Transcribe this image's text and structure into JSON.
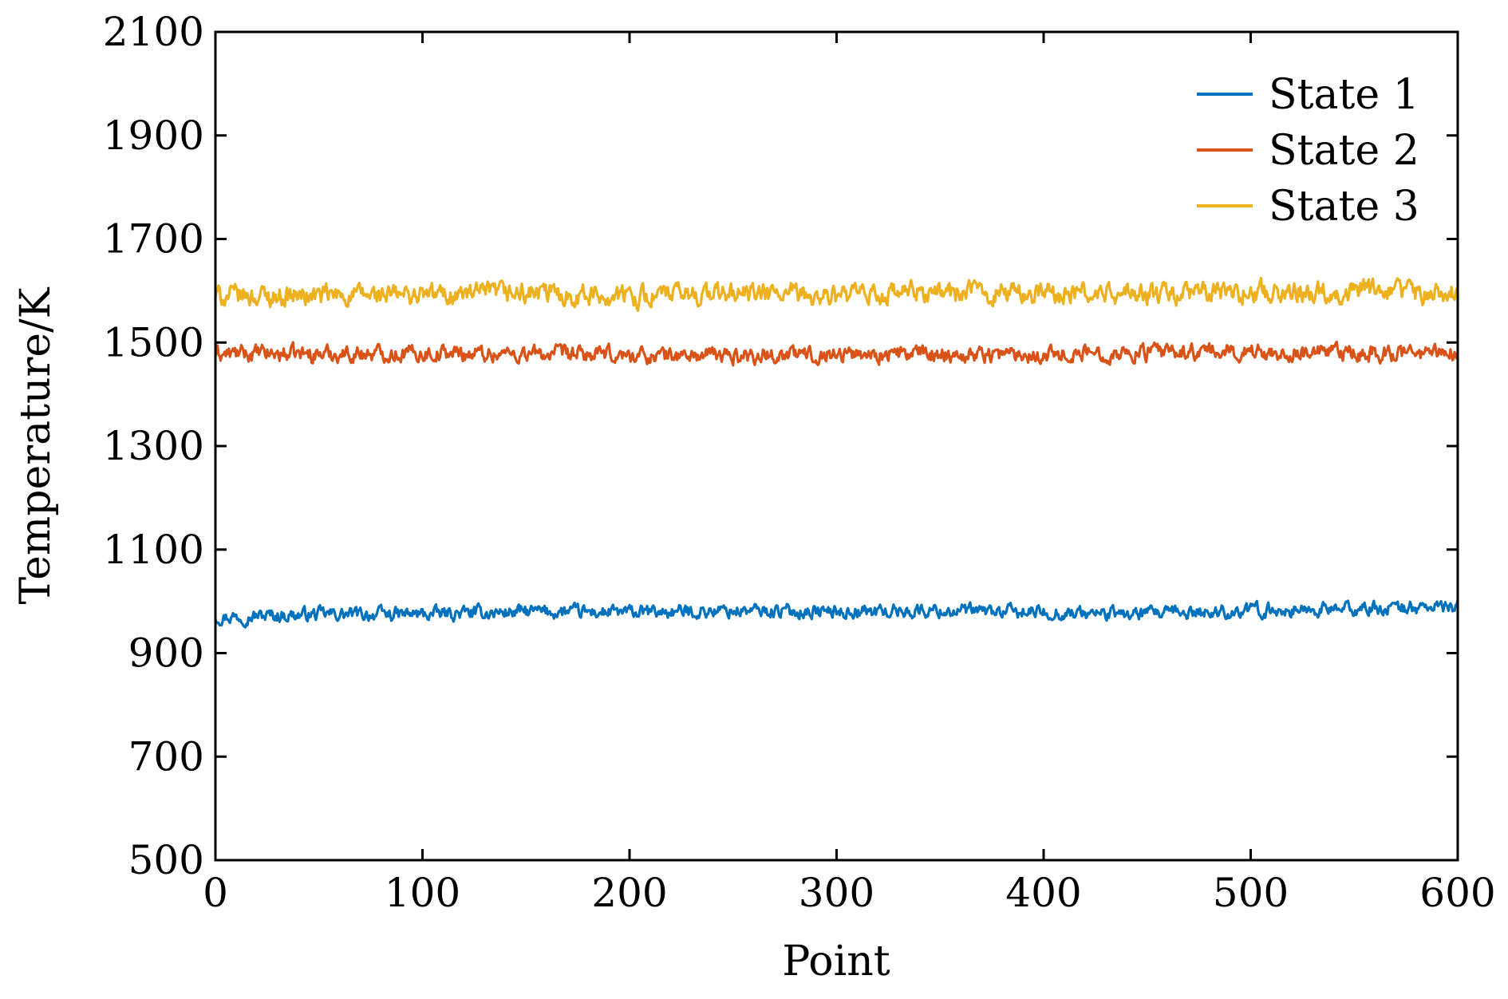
{
  "chart_data": {
    "type": "line",
    "xlabel": "Point",
    "ylabel": "Temperature/K",
    "xlim": [
      0,
      600
    ],
    "ylim": [
      500,
      2100
    ],
    "xticks": [
      "0",
      "100",
      "200",
      "300",
      "400",
      "500",
      "600"
    ],
    "yticks": [
      "500",
      "700",
      "900",
      "1100",
      "1300",
      "1500",
      "1700",
      "1900",
      "2100"
    ],
    "grid": false,
    "legend_position": "top-right",
    "series": [
      {
        "name": "State 1",
        "color": "#0072BD",
        "mean": 978,
        "noise_amplitude": 18,
        "x": [
          0,
          50,
          100,
          150,
          200,
          250,
          300,
          350,
          400,
          450,
          500,
          550,
          600
        ],
        "values": [
          970,
          975,
          975,
          980,
          978,
          982,
          980,
          982,
          978,
          975,
          982,
          985,
          990
        ]
      },
      {
        "name": "State 2",
        "color": "#D95319",
        "mean": 1478,
        "noise_amplitude": 22,
        "x": [
          0,
          50,
          100,
          150,
          200,
          250,
          300,
          350,
          400,
          450,
          500,
          550,
          600
        ],
        "values": [
          1478,
          1478,
          1480,
          1478,
          1475,
          1475,
          1478,
          1478,
          1478,
          1480,
          1482,
          1478,
          1480
        ]
      },
      {
        "name": "State 3",
        "color": "#EDB120",
        "mean": 1592,
        "noise_amplitude": 28,
        "x": [
          0,
          50,
          100,
          150,
          200,
          250,
          300,
          350,
          400,
          450,
          500,
          550,
          600
        ],
        "values": [
          1590,
          1590,
          1592,
          1595,
          1590,
          1595,
          1588,
          1598,
          1595,
          1592,
          1598,
          1600,
          1595
        ]
      }
    ]
  }
}
